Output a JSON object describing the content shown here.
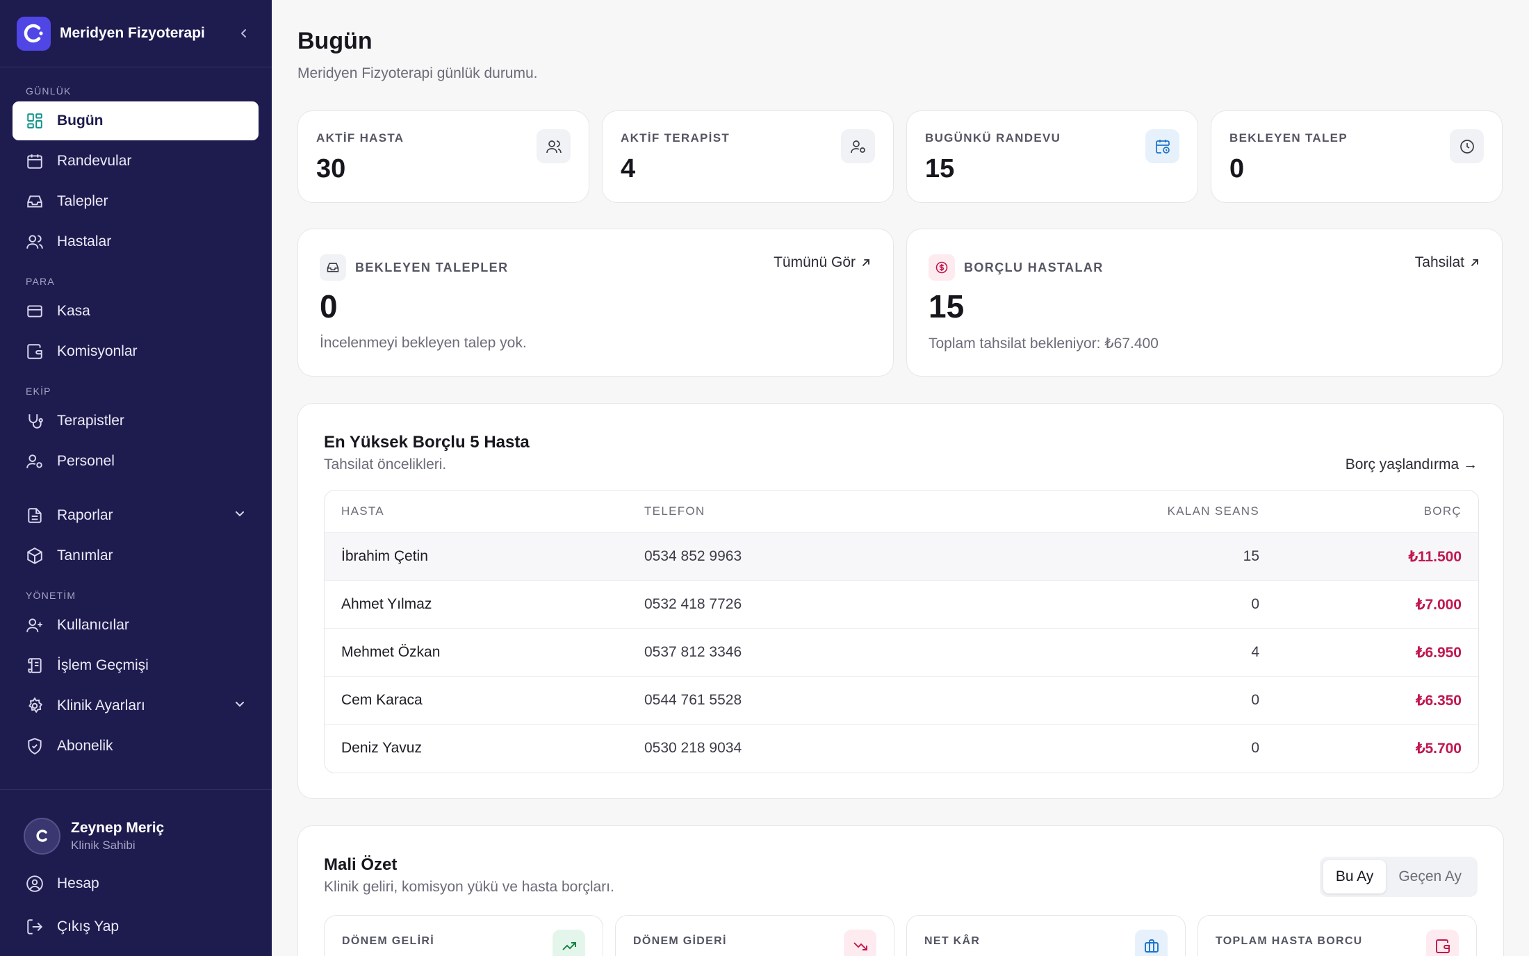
{
  "brand": {
    "name": "Meridyen Fizyoterapi"
  },
  "nav": {
    "sections": {
      "daily": "GÜNLÜK",
      "money": "PARA",
      "team": "EKİP",
      "admin": "YÖNETİM"
    },
    "items": {
      "today": "Bugün",
      "appointments": "Randevular",
      "requests": "Talepler",
      "patients": "Hastalar",
      "cash": "Kasa",
      "commissions": "Komisyonlar",
      "therapists": "Terapistler",
      "staff": "Personel",
      "reports": "Raporlar",
      "definitions": "Tanımlar",
      "users": "Kullanıcılar",
      "history": "İşlem Geçmişi",
      "clinic_settings": "Klinik Ayarları",
      "subscription": "Abonelik"
    }
  },
  "user": {
    "name": "Zeynep Meriç",
    "role": "Klinik Sahibi",
    "account": "Hesap",
    "logout": "Çıkış Yap"
  },
  "page": {
    "title": "Bugün",
    "subtitle": "Meridyen Fizyoterapi günlük durumu."
  },
  "stats": [
    {
      "label": "AKTİF HASTA",
      "value": "30",
      "icon": "users-icon"
    },
    {
      "label": "AKTİF TERAPİST",
      "value": "4",
      "icon": "user-cog-icon"
    },
    {
      "label": "BUGÜNKÜ RANDEVU",
      "value": "15",
      "icon": "calendar-clock-icon"
    },
    {
      "label": "BEKLEYEN TALEP",
      "value": "0",
      "icon": "clock-icon"
    }
  ],
  "pending": {
    "label": "BEKLEYEN TALEPLER",
    "link": "Tümünü Gör",
    "value": "0",
    "note": "İncelenmeyi bekleyen talep yok."
  },
  "debtors_card": {
    "label": "BORÇLU HASTALAR",
    "link": "Tahsilat",
    "value": "15",
    "note": "Toplam tahsilat bekleniyor: ₺67.400"
  },
  "top_debtors": {
    "title": "En Yüksek Borçlu 5 Hasta",
    "subtitle": "Tahsilat öncelikleri.",
    "link": "Borç yaşlandırma →",
    "columns": [
      "HASTA",
      "TELEFON",
      "KALAN SEANS",
      "BORÇ"
    ],
    "rows": [
      {
        "name": "İbrahim Çetin",
        "phone": "0534 852 9963",
        "sessions": "15",
        "debt": "₺11.500"
      },
      {
        "name": "Ahmet Yılmaz",
        "phone": "0532 418 7726",
        "sessions": "0",
        "debt": "₺7.000"
      },
      {
        "name": "Mehmet Özkan",
        "phone": "0537 812 3346",
        "sessions": "4",
        "debt": "₺6.950"
      },
      {
        "name": "Cem Karaca",
        "phone": "0544 761 5528",
        "sessions": "0",
        "debt": "₺6.350"
      },
      {
        "name": "Deniz Yavuz",
        "phone": "0530 218 9034",
        "sessions": "0",
        "debt": "₺5.700"
      }
    ]
  },
  "finance": {
    "title": "Mali Özet",
    "subtitle": "Klinik geliri, komisyon yükü ve hasta borçları.",
    "tabs": [
      "Bu Ay",
      "Geçen Ay"
    ],
    "cards": [
      {
        "label": "DÖNEM GELİRİ",
        "icon": "trending-up-icon"
      },
      {
        "label": "DÖNEM GİDERİ",
        "icon": "trending-down-icon"
      },
      {
        "label": "NET KÂR",
        "icon": "briefcase-icon"
      },
      {
        "label": "TOPLAM HASTA BORCU",
        "icon": "wallet-icon"
      }
    ]
  },
  "colors": {
    "sidebar": "#1e1b4f",
    "accent": "#4f46e5",
    "debt": "#c0174f",
    "active_icon": "#0d9488"
  }
}
